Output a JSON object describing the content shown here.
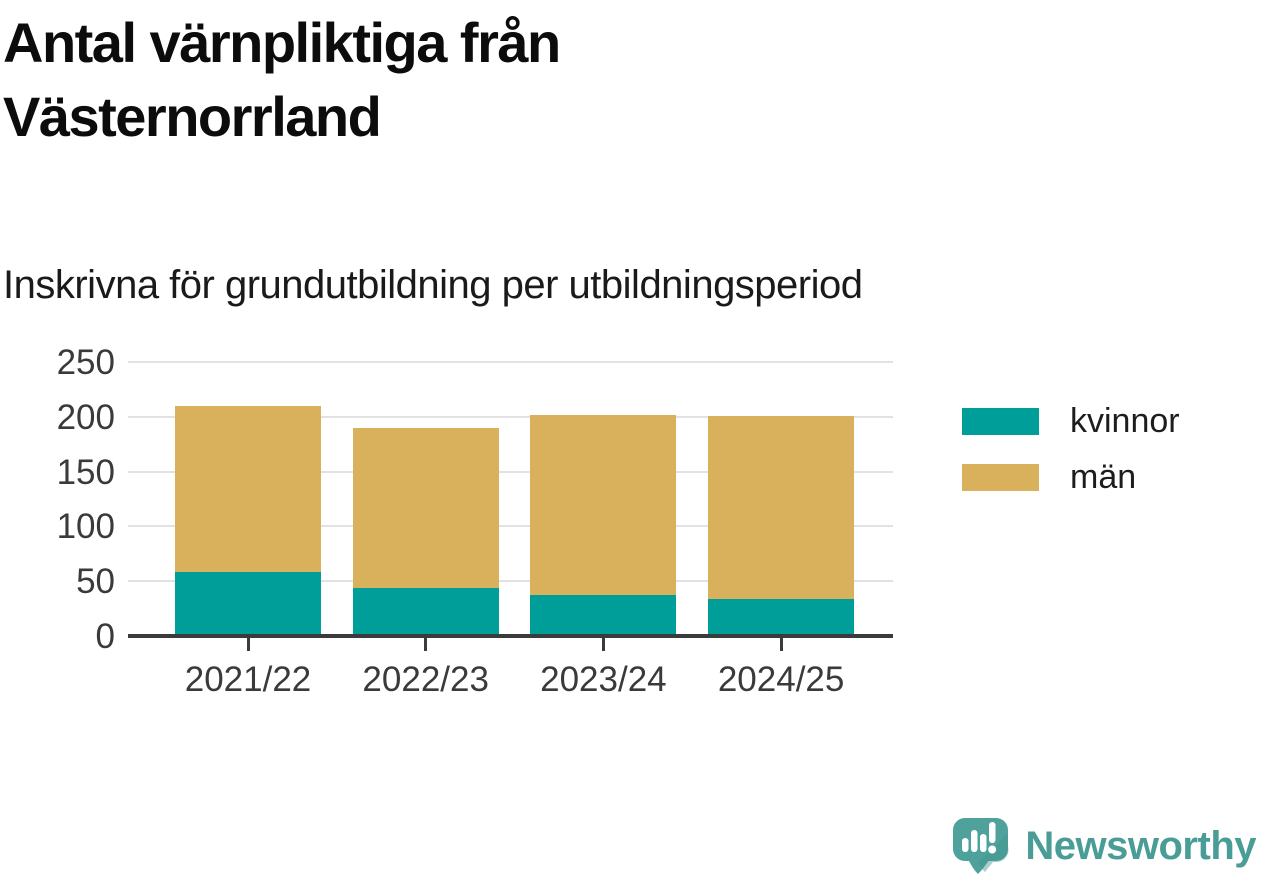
{
  "header": {
    "title": "Antal värnpliktiga från Västernorrland",
    "subtitle": "Inskrivna för grundutbildning per utbildningsperiod"
  },
  "chart_data": {
    "type": "bar",
    "stacked": true,
    "title": "Antal värnpliktiga från Västernorrland",
    "subtitle": "Inskrivna för grundutbildning per utbildningsperiod",
    "categories": [
      "2021/22",
      "2022/23",
      "2023/24",
      "2024/25"
    ],
    "series": [
      {
        "name": "kvinnor",
        "color": "#009e98",
        "values": [
          58,
          44,
          37,
          34
        ]
      },
      {
        "name": "män",
        "color": "#d9b05c",
        "values": [
          152,
          146,
          165,
          167
        ]
      }
    ],
    "totals": [
      210,
      190,
      202,
      201
    ],
    "xlabel": "",
    "ylabel": "",
    "ylim": [
      0,
      250
    ],
    "yticks": [
      0,
      50,
      100,
      150,
      200,
      250
    ],
    "grid": "horizontal",
    "legend_position": "right",
    "axis_color": "#3b3b3b",
    "gridline_color": "#e2e2e2"
  },
  "branding": {
    "logo_text": "Newsworthy",
    "wordmark_color": "#4a9c97",
    "logo_mark_color": "#4ea29b",
    "logo_mark_shadow_color": "#45948e"
  }
}
